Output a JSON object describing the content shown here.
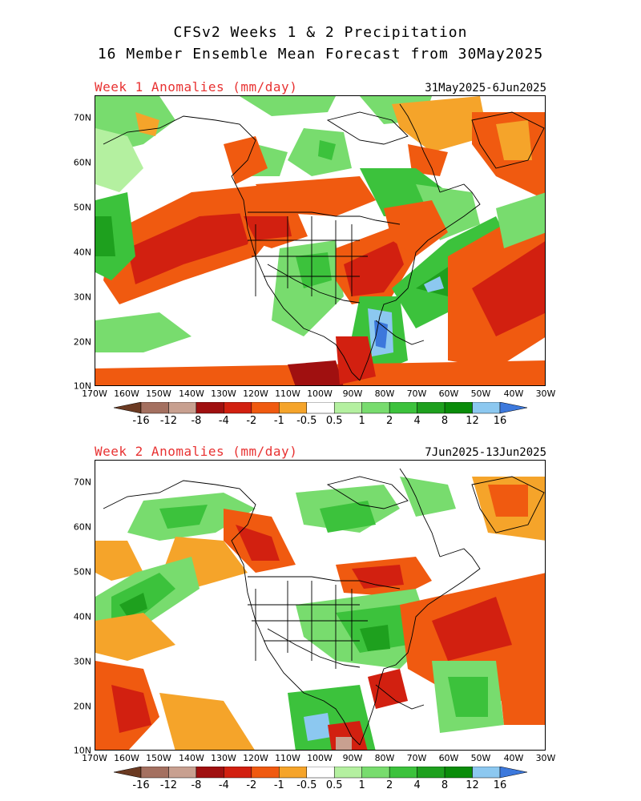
{
  "title_line1": "CFSv2 Weeks 1 & 2 Precipitation",
  "title_line2": "16 Member Ensemble Mean Forecast from 30May2025",
  "colors": {
    "dry": [
      "#6b3a22",
      "#a47060",
      "#c8a090",
      "#a01010",
      "#d22010",
      "#f05a10",
      "#f5a42a"
    ],
    "wet": [
      "#b4f0a0",
      "#78dc6e",
      "#3cc23c",
      "#1ea01e",
      "#0a8c0a",
      "#8cc8f0",
      "#3c78dc"
    ],
    "white": "#ffffff"
  },
  "colorbar_labels": [
    "-16",
    "-12",
    "-8",
    "-4",
    "-2",
    "-1",
    "-0.5",
    "0.5",
    "1",
    "2",
    "4",
    "8",
    "12",
    "16"
  ],
  "y_ticks": [
    "70N",
    "60N",
    "50N",
    "40N",
    "30N",
    "20N",
    "10N"
  ],
  "x_ticks": [
    "170W",
    "160W",
    "150W",
    "140W",
    "130W",
    "120W",
    "110W",
    "100W",
    "90W",
    "80W",
    "70W",
    "60W",
    "50W",
    "40W",
    "30W"
  ],
  "panels": [
    {
      "label": "Week 1 Anomalies (mm/day)",
      "dates": "31May2025-6Jun2025"
    },
    {
      "label": "Week 2 Anomalies (mm/day)",
      "dates": "7Jun2025-13Jun2025"
    }
  ]
}
